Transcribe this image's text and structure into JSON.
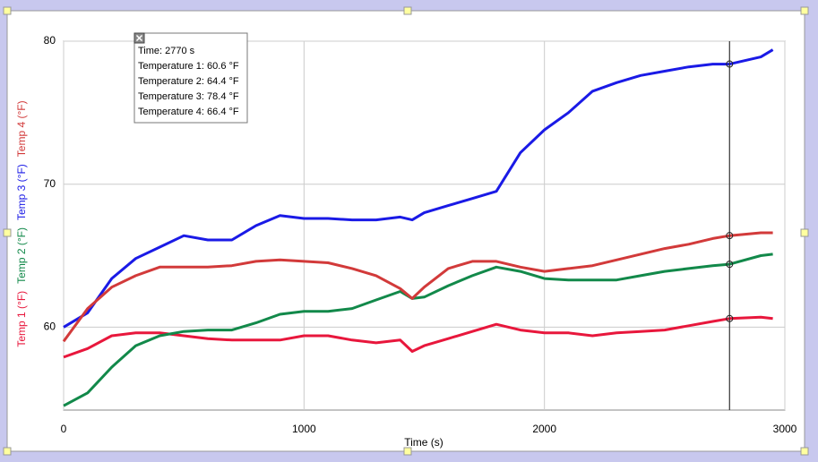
{
  "chart_data": {
    "type": "line",
    "x_label": "Time (s)",
    "x": [
      0,
      100,
      200,
      300,
      400,
      500,
      600,
      700,
      800,
      900,
      1000,
      1100,
      1200,
      1300,
      1400,
      1450,
      1500,
      1600,
      1700,
      1800,
      1900,
      2000,
      2100,
      2200,
      2300,
      2400,
      2500,
      2600,
      2700,
      2770,
      2900,
      2950
    ],
    "series": [
      {
        "name": "Temperature 1",
        "axis_label": "Temp 1 (°F)",
        "color": "#e8173c",
        "values": [
          57.9,
          58.5,
          59.4,
          59.6,
          59.6,
          59.4,
          59.2,
          59.1,
          59.1,
          59.1,
          59.4,
          59.4,
          59.1,
          58.9,
          59.1,
          58.3,
          58.7,
          59.2,
          59.7,
          60.2,
          59.8,
          59.6,
          59.6,
          59.4,
          59.6,
          59.7,
          59.8,
          60.1,
          60.4,
          60.6,
          60.7,
          60.6
        ]
      },
      {
        "name": "Temperature 2",
        "axis_label": "Temp 2 (°F)",
        "color": "#12894a",
        "values": [
          54.5,
          55.4,
          57.2,
          58.7,
          59.4,
          59.7,
          59.8,
          59.8,
          60.3,
          60.9,
          61.1,
          61.1,
          61.3,
          61.9,
          62.5,
          62.0,
          62.1,
          62.9,
          63.6,
          64.2,
          63.9,
          63.4,
          63.3,
          63.3,
          63.3,
          63.6,
          63.9,
          64.1,
          64.3,
          64.4,
          65.0,
          65.1
        ]
      },
      {
        "name": "Temperature 3",
        "axis_label": "Temp 3 (°F)",
        "color": "#1a1ae6",
        "values": [
          60.0,
          61.0,
          63.4,
          64.8,
          65.6,
          66.4,
          66.1,
          66.1,
          67.1,
          67.8,
          67.6,
          67.6,
          67.5,
          67.5,
          67.7,
          67.5,
          68.0,
          68.5,
          69.0,
          69.5,
          72.2,
          73.8,
          75.0,
          76.5,
          77.1,
          77.6,
          77.9,
          78.2,
          78.4,
          78.4,
          78.9,
          79.4
        ]
      },
      {
        "name": "Temperature 4",
        "axis_label": "Temp 4 (°F)",
        "color": "#d23a3a",
        "values": [
          59.0,
          61.3,
          62.8,
          63.6,
          64.2,
          64.2,
          64.2,
          64.3,
          64.6,
          64.7,
          64.6,
          64.5,
          64.1,
          63.6,
          62.7,
          62.0,
          62.8,
          64.1,
          64.6,
          64.6,
          64.2,
          63.9,
          64.1,
          64.3,
          64.7,
          65.1,
          65.5,
          65.8,
          66.2,
          66.4,
          66.6,
          66.6
        ]
      }
    ],
    "xlim": [
      0,
      3000
    ],
    "xticks": [
      0,
      1000,
      2000,
      3000
    ],
    "ylim": [
      54.2,
      80
    ],
    "yticks": [
      60,
      70,
      80
    ],
    "grid": true,
    "tooltip": {
      "x": 2770,
      "index": 29,
      "lines": [
        "Time: 2770 s",
        "Temperature 1: 60.6 °F",
        "Temperature 2: 64.4 °F",
        "Temperature 3: 78.4 °F",
        "Temperature 4: 66.4 °F"
      ]
    }
  }
}
